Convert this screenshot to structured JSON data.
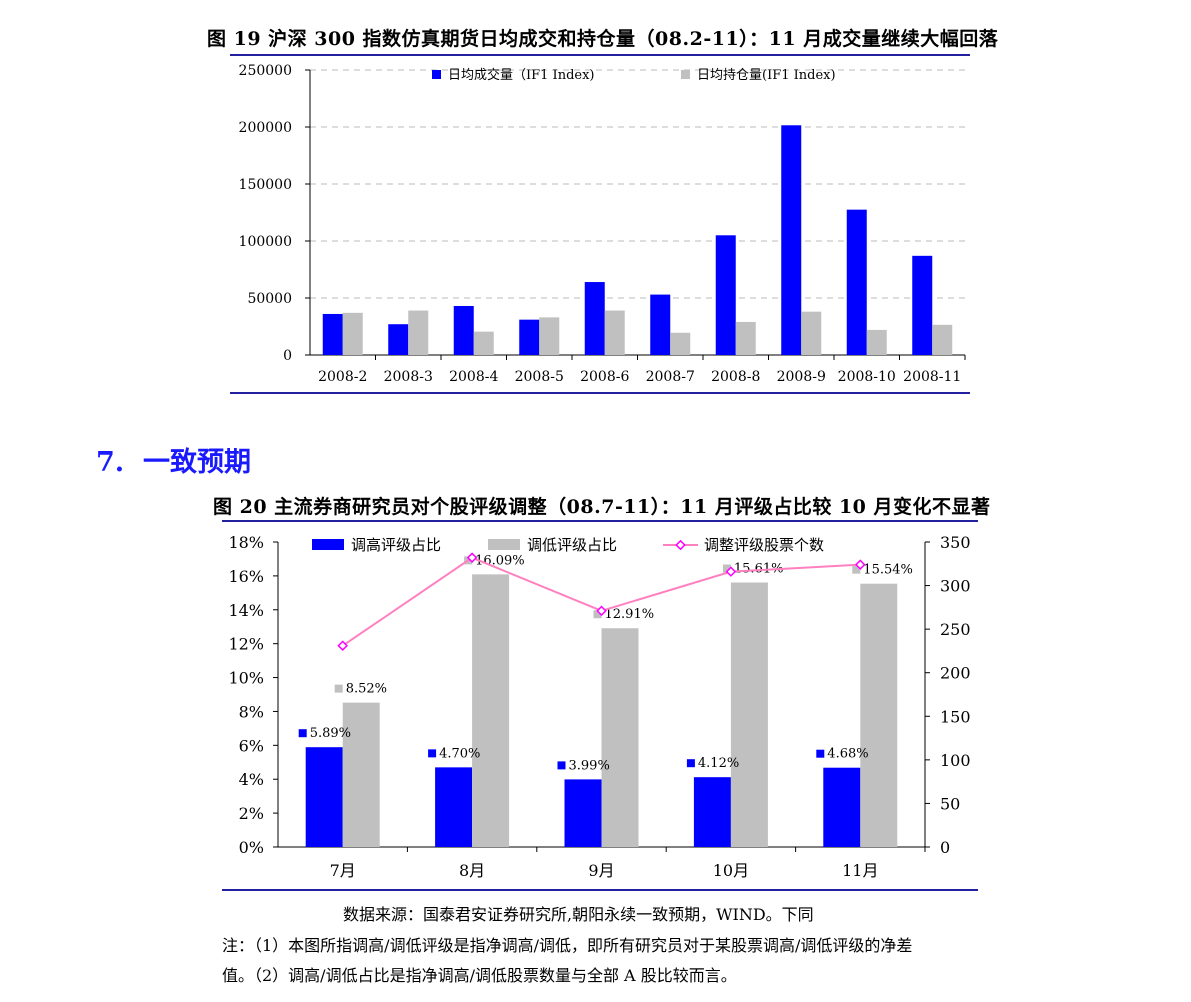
{
  "figure19": {
    "title": "图 19  沪深 300 指数仿真期货日均成交和持仓量（08.2-11）：11 月成交量继续大幅回落",
    "chart_data": {
      "type": "bar",
      "categories": [
        "2008-2",
        "2008-3",
        "2008-4",
        "2008-5",
        "2008-6",
        "2008-7",
        "2008-8",
        "2008-9",
        "2008-10",
        "2008-11"
      ],
      "series": [
        {
          "name": "日均成交量（IF1 Index)",
          "color": "#0000ff",
          "values": [
            36000,
            27000,
            43000,
            31000,
            64000,
            53000,
            105000,
            201500,
            127500,
            87000
          ]
        },
        {
          "name": "日均持仓量(IF1 Index)",
          "color": "#c0c0c0",
          "values": [
            37000,
            39000,
            20500,
            33000,
            39000,
            19500,
            29000,
            38000,
            22000,
            26500
          ]
        }
      ],
      "ylim": [
        0,
        250000
      ],
      "yticks": [
        0,
        50000,
        100000,
        150000,
        200000,
        250000
      ],
      "ytick_labels": [
        "0",
        "50000",
        "100000",
        "150000",
        "200000",
        "250000"
      ],
      "grid": true,
      "legend": "top"
    }
  },
  "section": {
    "number": "7.",
    "title": "一致预期"
  },
  "figure20": {
    "title": "图 20  主流券商研究员对个股评级调整（08.7-11）：11 月评级占比较 10 月变化不显著",
    "chart_data": {
      "type": "bar",
      "categories": [
        "7月",
        "8月",
        "9月",
        "10月",
        "11月"
      ],
      "series": [
        {
          "name": "调高评级占比",
          "color": "#0000ff",
          "axis": "left",
          "values": [
            5.89,
            4.7,
            3.99,
            4.12,
            4.68
          ],
          "labels": [
            "5.89%",
            "4.70%",
            "3.99%",
            "4.12%",
            "4.68%"
          ]
        },
        {
          "name": "调低评级占比",
          "color": "#c0c0c0",
          "axis": "left",
          "values": [
            8.52,
            16.09,
            12.91,
            15.61,
            15.54
          ],
          "labels": [
            "8.52%",
            "16.09%",
            "12.91%",
            "15.61%",
            "15.54%"
          ]
        },
        {
          "name": "调整评级股票个数",
          "color": "#ff80c0",
          "marker_color": "#ff00ff",
          "type": "line",
          "axis": "right",
          "values": [
            231,
            332,
            271,
            316,
            324
          ]
        }
      ],
      "ylim_left": [
        0,
        18
      ],
      "yticks_left": [
        "0%",
        "2%",
        "4%",
        "6%",
        "8%",
        "10%",
        "12%",
        "14%",
        "16%",
        "18%"
      ],
      "ylim_right": [
        0,
        350
      ],
      "yticks_right": [
        "0",
        "50",
        "100",
        "150",
        "200",
        "250",
        "300",
        "350"
      ],
      "grid": false,
      "legend": "top"
    }
  },
  "notes": {
    "source": "数据来源：国泰君安证券研究所,朝阳永续一致预期，WIND。下同",
    "line1": "注：（1）本图所指调高/调低评级是指净调高/调低，即所有研究员对于某股票调高/调低评级的净差",
    "line2": "值。（2）调高/调低占比是指净调高/调低股票数量与全部 A 股比较而言。"
  }
}
